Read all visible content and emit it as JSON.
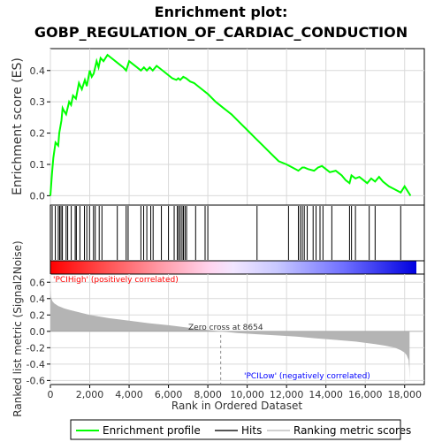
{
  "chart_data": {
    "type": "line",
    "title_line1": "Enrichment plot:",
    "title_line2": "GOBP_REGULATION_OF_CARDIAC_CONDUCTION",
    "xlabel": "Rank in Ordered Dataset",
    "top_ylabel": "Enrichment score (ES)",
    "bottom_ylabel": "Ranked list metric (Signal2Noise)",
    "xlim": [
      0,
      19000
    ],
    "top_ylim": [
      -0.03,
      0.47
    ],
    "bottom_ylim": [
      -0.65,
      0.7
    ],
    "x_ticks": [
      0,
      2000,
      4000,
      6000,
      8000,
      10000,
      12000,
      14000,
      16000,
      18000
    ],
    "x_tick_labels": [
      "0",
      "2,000",
      "4,000",
      "6,000",
      "8,000",
      "10,000",
      "12,000",
      "14,000",
      "16,000",
      "18,000"
    ],
    "top_y_ticks": [
      0.0,
      0.1,
      0.2,
      0.3,
      0.4
    ],
    "top_y_tick_labels": [
      "0.0",
      "0.1",
      "0.2",
      "0.3",
      "0.4"
    ],
    "bottom_y_ticks": [
      -0.6,
      -0.4,
      -0.2,
      0.0,
      0.2,
      0.4,
      0.6
    ],
    "bottom_y_tick_labels": [
      "-0.6",
      "-0.4",
      "-0.2",
      "0.0",
      "0.2",
      "0.4",
      "0.6"
    ],
    "enrichment_profile": {
      "name": "Enrichment profile",
      "color": "#00ff00",
      "x": [
        0,
        80,
        150,
        260,
        400,
        450,
        560,
        620,
        700,
        800,
        950,
        1050,
        1150,
        1300,
        1450,
        1600,
        1750,
        1850,
        2000,
        2100,
        2200,
        2350,
        2450,
        2550,
        2700,
        2900,
        3100,
        3300,
        3500,
        3700,
        3850,
        4000,
        4200,
        4400,
        4600,
        4750,
        4900,
        5050,
        5200,
        5400,
        5600,
        5800,
        6000,
        6200,
        6400,
        6500,
        6600,
        6750,
        6900,
        7100,
        7300,
        7500,
        7700,
        8000,
        8400,
        8800,
        9200,
        9600,
        10000,
        10400,
        10800,
        11200,
        11600,
        12000,
        12300,
        12600,
        12800,
        12900,
        13100,
        13400,
        13600,
        13800,
        14000,
        14200,
        14500,
        14800,
        15000,
        15200,
        15300,
        15500,
        15700,
        15900,
        16100,
        16300,
        16500,
        16700,
        16900,
        17200,
        17500,
        17800,
        18000,
        18300
      ],
      "y": [
        0.0,
        0.07,
        0.12,
        0.17,
        0.16,
        0.2,
        0.24,
        0.28,
        0.27,
        0.26,
        0.3,
        0.29,
        0.32,
        0.31,
        0.36,
        0.34,
        0.37,
        0.35,
        0.4,
        0.38,
        0.39,
        0.43,
        0.41,
        0.44,
        0.43,
        0.45,
        0.44,
        0.43,
        0.42,
        0.41,
        0.4,
        0.43,
        0.42,
        0.41,
        0.4,
        0.41,
        0.4,
        0.41,
        0.4,
        0.415,
        0.405,
        0.395,
        0.385,
        0.375,
        0.37,
        0.375,
        0.37,
        0.38,
        0.375,
        0.365,
        0.36,
        0.35,
        0.34,
        0.325,
        0.3,
        0.28,
        0.26,
        0.235,
        0.21,
        0.185,
        0.16,
        0.135,
        0.11,
        0.1,
        0.09,
        0.08,
        0.09,
        0.09,
        0.085,
        0.08,
        0.09,
        0.095,
        0.085,
        0.075,
        0.08,
        0.065,
        0.05,
        0.04,
        0.065,
        0.055,
        0.06,
        0.05,
        0.04,
        0.055,
        0.045,
        0.06,
        0.045,
        0.03,
        0.02,
        0.01,
        0.03,
        0.0
      ]
    },
    "hits": {
      "name": "Hits",
      "color": "#000000",
      "x": [
        90,
        250,
        400,
        470,
        540,
        610,
        800,
        880,
        1060,
        1260,
        1320,
        1500,
        1730,
        1850,
        1990,
        2190,
        2280,
        2480,
        2620,
        3400,
        3850,
        3950,
        4600,
        4740,
        4900,
        5100,
        5220,
        5640,
        6000,
        6290,
        6450,
        6520,
        6600,
        6690,
        6760,
        6840,
        6920,
        7380,
        7860,
        8000,
        10500,
        12100,
        12600,
        12700,
        12800,
        12900,
        13050,
        13350,
        13500,
        13700,
        13850,
        14300,
        15200,
        15300,
        15500,
        16200,
        16500,
        17800
      ]
    },
    "metric_scores": {
      "name": "Ranking metric scores",
      "color": "#c0c0c0",
      "x": [
        0,
        30,
        100,
        200,
        400,
        700,
        1000,
        1500,
        2000,
        3000,
        4000,
        5000,
        6000,
        7000,
        8000,
        8654,
        9500,
        10500,
        11500,
        12500,
        13500,
        14500,
        15500,
        16500,
        17000,
        17500,
        17800,
        18000,
        18100,
        18200,
        18230,
        18250
      ],
      "y": [
        0.52,
        0.42,
        0.37,
        0.34,
        0.31,
        0.28,
        0.26,
        0.23,
        0.2,
        0.16,
        0.13,
        0.1,
        0.075,
        0.045,
        0.015,
        0.0,
        -0.02,
        -0.035,
        -0.05,
        -0.065,
        -0.085,
        -0.105,
        -0.125,
        -0.155,
        -0.175,
        -0.2,
        -0.23,
        -0.26,
        -0.29,
        -0.35,
        -0.45,
        -0.6
      ]
    },
    "zero_cross": 8654,
    "annotations": {
      "zero_cross_text": "Zero cross at 8654",
      "pos_label": "'PCIHigh' (positively correlated)",
      "neg_label": "'PCILow' (negatively correlated)"
    },
    "colors": {
      "pos_red": "#ff0000",
      "neg_blue": "#0000ff",
      "grid": "#d9d9d9",
      "panel_bg": "#ffffff"
    }
  }
}
